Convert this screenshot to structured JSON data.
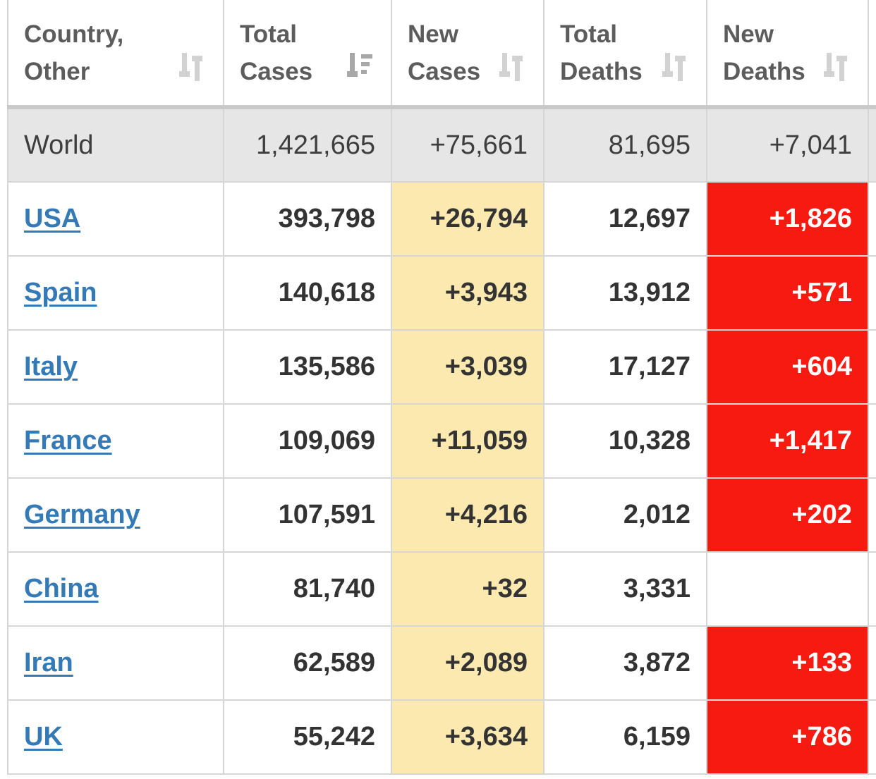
{
  "columns": [
    {
      "label": "Country,\nOther",
      "sort_icon": "sort-both-icon"
    },
    {
      "label": "Total\nCases",
      "sort_icon": "sort-desc-icon"
    },
    {
      "label": "New\nCases",
      "sort_icon": "sort-both-icon"
    },
    {
      "label": "Total\nDeaths",
      "sort_icon": "sort-both-icon"
    },
    {
      "label": "New\nDeaths",
      "sort_icon": "sort-both-icon"
    }
  ],
  "world": {
    "country": "World",
    "total_cases": "1,421,665",
    "new_cases": "+75,661",
    "total_deaths": "81,695",
    "new_deaths": "+7,041"
  },
  "rows": [
    {
      "country": "USA",
      "total_cases": "393,798",
      "new_cases": "+26,794",
      "total_deaths": "12,697",
      "new_deaths": "+1,826"
    },
    {
      "country": "Spain",
      "total_cases": "140,618",
      "new_cases": "+3,943",
      "total_deaths": "13,912",
      "new_deaths": "+571"
    },
    {
      "country": "Italy",
      "total_cases": "135,586",
      "new_cases": "+3,039",
      "total_deaths": "17,127",
      "new_deaths": "+604"
    },
    {
      "country": "France",
      "total_cases": "109,069",
      "new_cases": "+11,059",
      "total_deaths": "10,328",
      "new_deaths": "+1,417"
    },
    {
      "country": "Germany",
      "total_cases": "107,591",
      "new_cases": "+4,216",
      "total_deaths": "2,012",
      "new_deaths": "+202"
    },
    {
      "country": "China",
      "total_cases": "81,740",
      "new_cases": "+32",
      "total_deaths": "3,331",
      "new_deaths": ""
    },
    {
      "country": "Iran",
      "total_cases": "62,589",
      "new_cases": "+2,089",
      "total_deaths": "3,872",
      "new_deaths": "+133"
    },
    {
      "country": "UK",
      "total_cases": "55,242",
      "new_cases": "+3,634",
      "total_deaths": "6,159",
      "new_deaths": "+786"
    }
  ],
  "colors": {
    "link": "#337ab7",
    "new_cases_bg": "#fbe9b0",
    "new_deaths_bg": "#f71a10",
    "world_bg": "#e6e6e6"
  }
}
